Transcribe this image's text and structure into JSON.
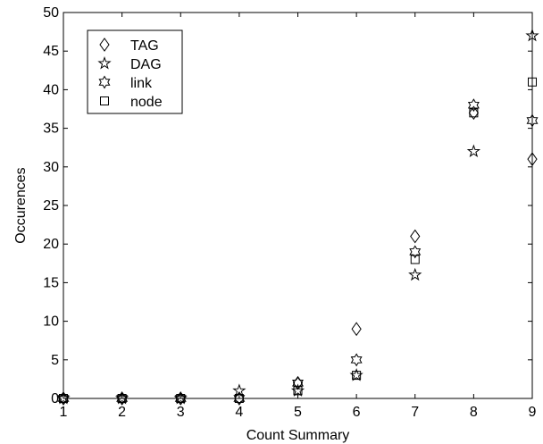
{
  "chart_data": {
    "type": "scatter",
    "title": "",
    "xlabel": "Count Summary",
    "ylabel": "Occurences",
    "xlim": [
      1,
      9
    ],
    "ylim": [
      0,
      50
    ],
    "xticks": [
      1,
      2,
      3,
      4,
      5,
      6,
      7,
      8,
      9
    ],
    "yticks": [
      0,
      5,
      10,
      15,
      20,
      25,
      30,
      35,
      40,
      45,
      50
    ],
    "grid": false,
    "legend_position": "top-left",
    "x": [
      1,
      2,
      3,
      4,
      5,
      6,
      7,
      8,
      9
    ],
    "series": [
      {
        "name": "TAG",
        "marker": "diamond",
        "color": "#000000",
        "values": [
          0,
          0,
          0,
          0,
          2,
          9,
          21,
          37,
          31
        ]
      },
      {
        "name": "DAG",
        "marker": "pentagram",
        "color": "#000000",
        "values": [
          0,
          0,
          0,
          1,
          1,
          3,
          16,
          32,
          47
        ]
      },
      {
        "name": "link",
        "marker": "hexagram",
        "color": "#000000",
        "values": [
          0,
          0,
          0,
          0,
          2,
          5,
          19,
          38,
          36
        ]
      },
      {
        "name": "node",
        "marker": "square",
        "color": "#000000",
        "values": [
          0,
          0,
          0,
          0,
          1,
          3,
          18,
          37,
          41
        ]
      }
    ]
  }
}
